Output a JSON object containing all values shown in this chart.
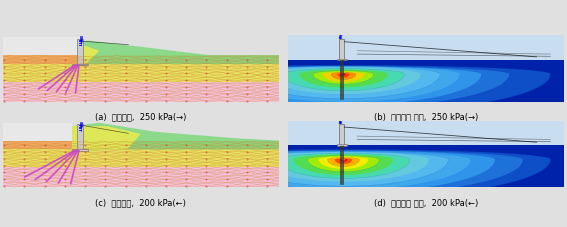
{
  "figure_width": 5.67,
  "figure_height": 2.27,
  "dpi": 100,
  "bg_color": "#e0e0e0",
  "captions": [
    "(a)  변형형상,  250 kPa(→)",
    "(b)  수평변위 분포,  250 kPa(→)",
    "(c)  변형형상,  200 kPa(←)",
    "(d)  수평변위 분포,  200 kPa(←)"
  ],
  "caption_fontsize": 6.0,
  "soil_pink": "#f5c0d8",
  "soil_yellow": "#e8e060",
  "soil_orange": "#f0a860",
  "soil_green": "#90d890",
  "soil_yellow2": "#e8e448",
  "mesh_line_color": "#cc8833",
  "mesh_dot_color": "#cc4444",
  "pile_color": "#cc44cc",
  "wall_color": "#cccccc",
  "wall_edge": "#888888",
  "right_bg_deep": "#0022aa",
  "right_bg_upper": "#aaccee",
  "contour_colors": [
    "#ff0000",
    "#ff6600",
    "#ffaa00",
    "#ffee00",
    "#88dd00",
    "#00cc88",
    "#00aacc",
    "#3388ff",
    "#1144cc",
    "#0022aa"
  ]
}
